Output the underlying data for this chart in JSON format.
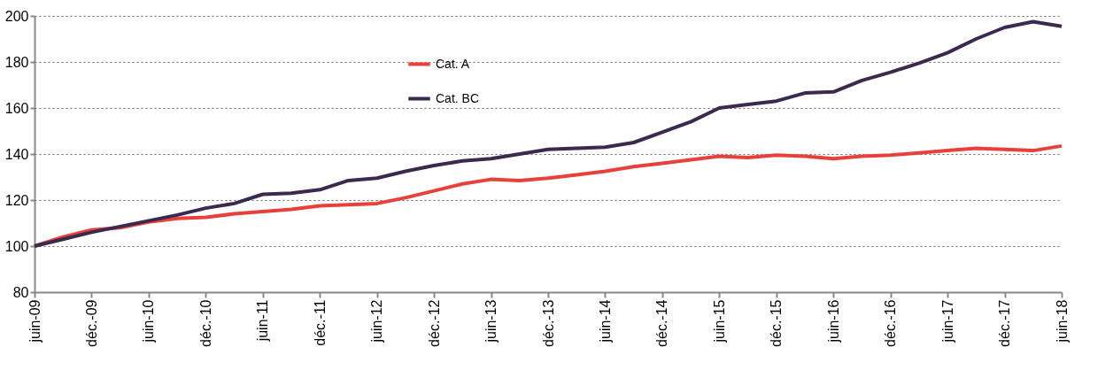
{
  "chart_data": {
    "type": "line",
    "categories": [
      "juin-09",
      null,
      "déc.-09",
      null,
      "juin-10",
      null,
      "déc.-10",
      null,
      "juin-11",
      null,
      "déc.-11",
      null,
      "juin-12",
      null,
      "déc.-12",
      null,
      "juin-13",
      null,
      "déc.-13",
      null,
      "juin-14",
      null,
      "déc.-14",
      null,
      "juin-15",
      null,
      "déc.-15",
      null,
      "juin-16",
      null,
      "déc.-16",
      null,
      "juin-17",
      null,
      "déc.-17",
      null,
      "juin-18"
    ],
    "series": [
      {
        "name": "Cat. A",
        "color": "#e8403a",
        "values": [
          100,
          104,
          107,
          108,
          110.5,
          112,
          112.5,
          114,
          115,
          116,
          117.5,
          118,
          118.5,
          121,
          124,
          127,
          129,
          128.5,
          129.5,
          131,
          132.5,
          134.5,
          136,
          137.5,
          139,
          138.5,
          139.5,
          139,
          138,
          139,
          139.5,
          140.5,
          141.5,
          142.5,
          142,
          141.5,
          143.5
        ]
      },
      {
        "name": "Cat. BC",
        "color": "#3b2a4f",
        "values": [
          100,
          103,
          106,
          108.5,
          111,
          113.5,
          116.5,
          118.5,
          122.5,
          123,
          124.5,
          128.5,
          129.5,
          132.5,
          135,
          137,
          138,
          140,
          142,
          142.5,
          143,
          145,
          149.5,
          154,
          160,
          161.5,
          163,
          166.5,
          167,
          172,
          175.5,
          179.5,
          184,
          190,
          195,
          197.5,
          195.5
        ]
      }
    ],
    "ylim": [
      80,
      200
    ],
    "yticks": [
      80,
      100,
      120,
      140,
      160,
      180,
      200
    ],
    "grid": "y",
    "legend": "top",
    "line_style": "solid",
    "marker": "none"
  }
}
